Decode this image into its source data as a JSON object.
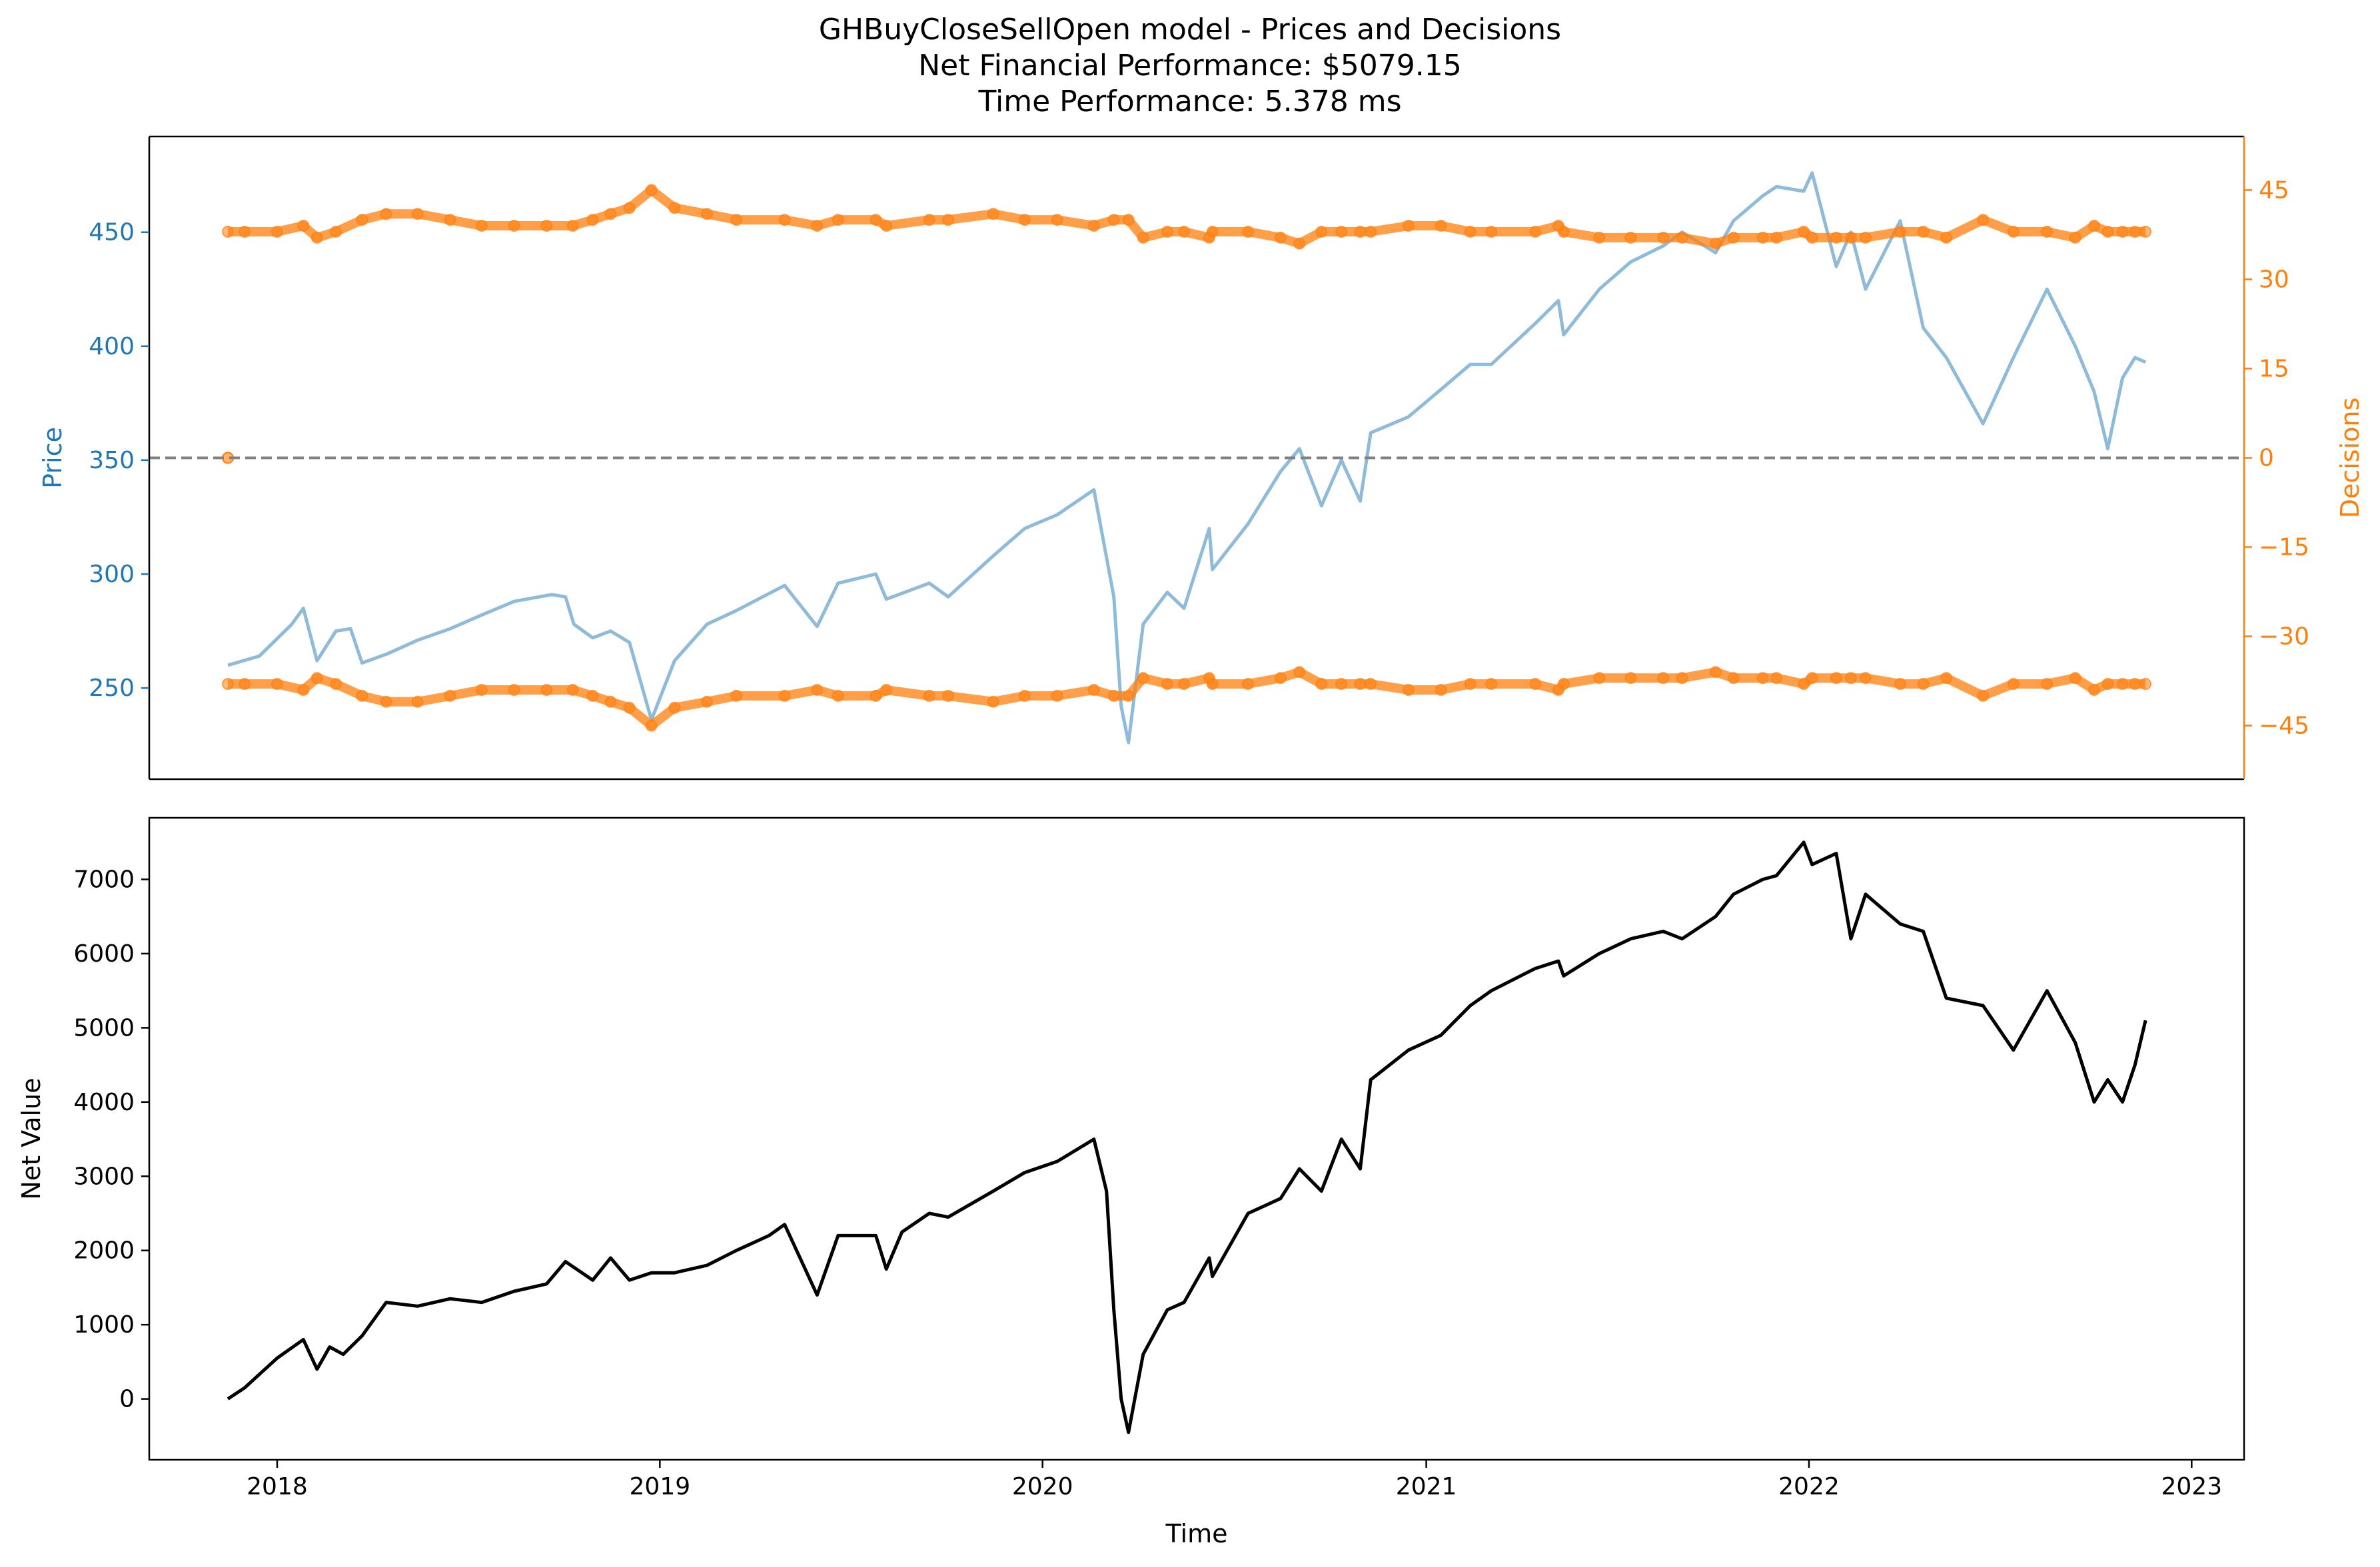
{
  "title_lines": [
    "GHBuyCloseSellOpen model - Prices and Decisions",
    "Net Financial Performance: $5079.15",
    "Time Performance: 5.378 ms"
  ],
  "colors": {
    "price": "#1f77b4",
    "decisions": "#ff7f0e",
    "net_value": "#000000",
    "zero_line": "#808080"
  },
  "chart_data": [
    {
      "type": "line",
      "name": "prices-and-decisions",
      "title": "GHBuyCloseSellOpen model - Prices and Decisions",
      "xlabel": "",
      "ylabel": "Price",
      "y2label": "Decisions",
      "xlim": [
        "2017-09-01",
        "2023-02-20"
      ],
      "ylim": [
        210,
        492
      ],
      "y2lim": [
        -54,
        54
      ],
      "yticks": [
        250,
        300,
        350,
        400,
        450
      ],
      "y2ticks": [
        -45,
        -30,
        -15,
        0,
        15,
        30,
        45
      ],
      "y2tick_labels": [
        "−45",
        "−30",
        "−15",
        "0",
        "15",
        "30",
        "45"
      ],
      "zero_line": 0,
      "grid": false,
      "series": [
        {
          "name": "",
          "axis": "left",
          "style": "line",
          "x": [
            "2017-11-15",
            "2017-12-15",
            "2018-01-15",
            "2018-01-26",
            "2018-02-08",
            "2018-02-26",
            "2018-03-12",
            "2018-03-23",
            "2018-04-16",
            "2018-05-15",
            "2018-06-15",
            "2018-07-15",
            "2018-08-15",
            "2018-09-20",
            "2018-10-03",
            "2018-10-11",
            "2018-10-29",
            "2018-11-15",
            "2018-12-03",
            "2018-12-24",
            "2019-01-15",
            "2019-02-15",
            "2019-03-15",
            "2019-04-30",
            "2019-05-31",
            "2019-06-20",
            "2019-07-26",
            "2019-08-05",
            "2019-09-15",
            "2019-10-03",
            "2019-11-15",
            "2019-12-15",
            "2020-01-15",
            "2020-02-19",
            "2020-03-09",
            "2020-03-16",
            "2020-03-23",
            "2020-04-06",
            "2020-04-29",
            "2020-05-15",
            "2020-06-08",
            "2020-06-11",
            "2020-07-15",
            "2020-08-15",
            "2020-09-02",
            "2020-09-23",
            "2020-10-12",
            "2020-10-30",
            "2020-11-09",
            "2020-12-15",
            "2021-01-15",
            "2021-02-12",
            "2021-03-04",
            "2021-04-15",
            "2021-05-07",
            "2021-05-12",
            "2021-06-15",
            "2021-07-15",
            "2021-08-15",
            "2021-09-02",
            "2021-10-04",
            "2021-10-21",
            "2021-11-18",
            "2021-12-01",
            "2021-12-27",
            "2022-01-04",
            "2022-01-27",
            "2022-02-10",
            "2022-02-24",
            "2022-03-29",
            "2022-04-20",
            "2022-05-12",
            "2022-06-16",
            "2022-07-15",
            "2022-08-16",
            "2022-09-12",
            "2022-09-30",
            "2022-10-13",
            "2022-10-27",
            "2022-11-08",
            "2022-11-18"
          ],
          "y": [
            260,
            264,
            278,
            285,
            262,
            275,
            276,
            261,
            265,
            271,
            276,
            282,
            288,
            291,
            290,
            278,
            272,
            275,
            270,
            236,
            262,
            278,
            284,
            295,
            277,
            296,
            300,
            289,
            296,
            290,
            308,
            320,
            326,
            337,
            290,
            242,
            226,
            278,
            292,
            285,
            320,
            302,
            322,
            345,
            355,
            330,
            350,
            332,
            362,
            369,
            381,
            392,
            392,
            410,
            420,
            405,
            425,
            437,
            444,
            450,
            441,
            455,
            466,
            470,
            468,
            476,
            435,
            450,
            425,
            455,
            408,
            395,
            366,
            395,
            425,
            400,
            380,
            355,
            386,
            395,
            393
          ]
        },
        {
          "name": "",
          "axis": "right",
          "style": "markers",
          "x": [
            "2017-11-15",
            "2017-12-01",
            "2018-01-01",
            "2018-01-26",
            "2018-02-08",
            "2018-02-26",
            "2018-03-23",
            "2018-04-15",
            "2018-05-15",
            "2018-06-15",
            "2018-07-15",
            "2018-08-15",
            "2018-09-15",
            "2018-10-10",
            "2018-10-29",
            "2018-11-15",
            "2018-12-03",
            "2018-12-24",
            "2019-01-15",
            "2019-02-15",
            "2019-03-15",
            "2019-04-30",
            "2019-05-31",
            "2019-06-20",
            "2019-07-26",
            "2019-08-05",
            "2019-09-15",
            "2019-10-03",
            "2019-11-15",
            "2019-12-15",
            "2020-01-15",
            "2020-02-19",
            "2020-03-09",
            "2020-03-23",
            "2020-04-06",
            "2020-04-29",
            "2020-05-15",
            "2020-06-08",
            "2020-06-11",
            "2020-07-15",
            "2020-08-15",
            "2020-09-02",
            "2020-09-23",
            "2020-10-12",
            "2020-10-30",
            "2020-11-09",
            "2020-12-15",
            "2021-01-15",
            "2021-02-12",
            "2021-03-04",
            "2021-04-15",
            "2021-05-07",
            "2021-05-12",
            "2021-06-15",
            "2021-07-15",
            "2021-08-15",
            "2021-09-02",
            "2021-10-04",
            "2021-10-21",
            "2021-11-18",
            "2021-12-01",
            "2021-12-27",
            "2022-01-04",
            "2022-01-27",
            "2022-02-10",
            "2022-02-24",
            "2022-03-29",
            "2022-04-20",
            "2022-05-12",
            "2022-06-16",
            "2022-07-15",
            "2022-08-16",
            "2022-09-12",
            "2022-09-30",
            "2022-10-13",
            "2022-10-27",
            "2022-11-08",
            "2022-11-18"
          ],
          "y": [
            38,
            38,
            38,
            39,
            37,
            38,
            40,
            41,
            41,
            40,
            39,
            39,
            39,
            39,
            40,
            41,
            42,
            45,
            42,
            41,
            40,
            40,
            39,
            40,
            40,
            39,
            40,
            40,
            41,
            40,
            40,
            39,
            40,
            40,
            37,
            38,
            38,
            37,
            38,
            38,
            37,
            36,
            38,
            38,
            38,
            38,
            39,
            39,
            38,
            38,
            38,
            39,
            38,
            37,
            37,
            37,
            37,
            36,
            37,
            37,
            37,
            38,
            37,
            37,
            37,
            37,
            38,
            38,
            37,
            40,
            38,
            38,
            37,
            39,
            38,
            38,
            38,
            38
          ],
          "mirror": true
        },
        {
          "name": "",
          "axis": "right",
          "style": "marker",
          "x": [
            "2017-11-15"
          ],
          "y": [
            0
          ]
        }
      ]
    },
    {
      "type": "line",
      "name": "net-value",
      "xlabel": "Time",
      "ylabel": "Net Value",
      "xlim": [
        "2017-09-01",
        "2023-02-20"
      ],
      "ylim": [
        -820,
        7830
      ],
      "yticks": [
        0,
        1000,
        2000,
        3000,
        4000,
        5000,
        6000,
        7000
      ],
      "xticks": [
        "2018",
        "2019",
        "2020",
        "2021",
        "2022",
        "2023"
      ],
      "grid": false,
      "series": [
        {
          "name": "",
          "x": [
            "2017-11-15",
            "2017-12-01",
            "2018-01-01",
            "2018-01-26",
            "2018-02-08",
            "2018-02-20",
            "2018-03-05",
            "2018-03-23",
            "2018-04-15",
            "2018-05-15",
            "2018-06-15",
            "2018-07-15",
            "2018-08-15",
            "2018-09-15",
            "2018-10-03",
            "2018-10-29",
            "2018-11-15",
            "2018-12-03",
            "2018-12-24",
            "2019-01-15",
            "2019-02-15",
            "2019-03-15",
            "2019-04-15",
            "2019-04-30",
            "2019-05-31",
            "2019-06-20",
            "2019-07-26",
            "2019-08-05",
            "2019-08-20",
            "2019-09-15",
            "2019-10-03",
            "2019-11-15",
            "2019-12-15",
            "2020-01-15",
            "2020-02-19",
            "2020-03-02",
            "2020-03-09",
            "2020-03-16",
            "2020-03-23",
            "2020-04-06",
            "2020-04-29",
            "2020-05-15",
            "2020-06-08",
            "2020-06-11",
            "2020-07-15",
            "2020-08-15",
            "2020-09-02",
            "2020-09-23",
            "2020-10-12",
            "2020-10-30",
            "2020-11-09",
            "2020-12-15",
            "2021-01-15",
            "2021-02-12",
            "2021-03-04",
            "2021-04-15",
            "2021-05-07",
            "2021-05-12",
            "2021-06-15",
            "2021-07-15",
            "2021-08-15",
            "2021-09-02",
            "2021-10-04",
            "2021-10-21",
            "2021-11-18",
            "2021-12-01",
            "2021-12-27",
            "2022-01-04",
            "2022-01-27",
            "2022-02-10",
            "2022-02-24",
            "2022-03-29",
            "2022-04-20",
            "2022-05-12",
            "2022-06-16",
            "2022-07-15",
            "2022-08-16",
            "2022-09-12",
            "2022-09-30",
            "2022-10-13",
            "2022-10-27",
            "2022-11-08",
            "2022-11-18"
          ],
          "y": [
            0,
            150,
            550,
            800,
            400,
            700,
            600,
            850,
            1300,
            1250,
            1350,
            1300,
            1450,
            1550,
            1850,
            1600,
            1900,
            1600,
            1700,
            1700,
            1800,
            2000,
            2200,
            2350,
            1400,
            2200,
            2200,
            1750,
            2250,
            2500,
            2450,
            2800,
            3050,
            3200,
            3500,
            2800,
            1200,
            0,
            -450,
            600,
            1200,
            1300,
            1900,
            1650,
            2500,
            2700,
            3100,
            2800,
            3500,
            3100,
            4300,
            4700,
            4900,
            5300,
            5500,
            5800,
            5900,
            5700,
            6000,
            6200,
            6300,
            6200,
            6500,
            6800,
            7000,
            7050,
            7500,
            7200,
            7350,
            6200,
            6800,
            6400,
            6300,
            5400,
            5300,
            4700,
            5500,
            4800,
            4000,
            4300,
            4000,
            4500,
            5100
          ]
        }
      ]
    }
  ]
}
